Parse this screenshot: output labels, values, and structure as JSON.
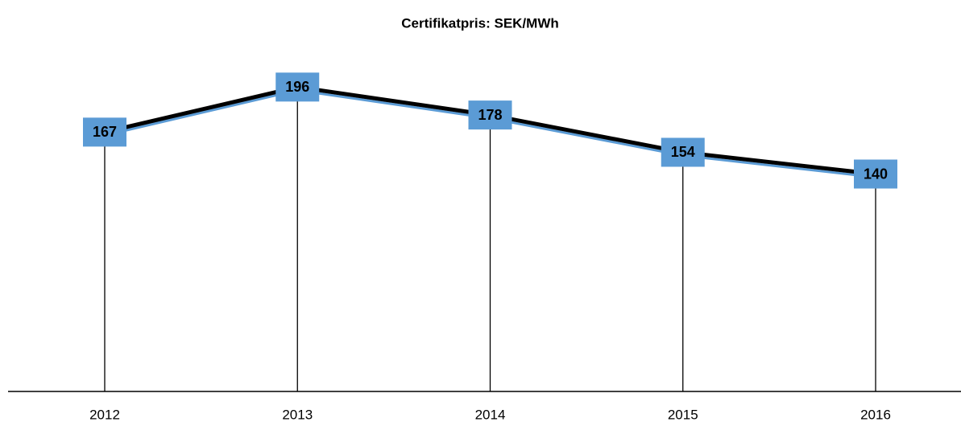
{
  "chart_data": {
    "type": "line",
    "title": "Certifikatpris: SEK/MWh",
    "categories": [
      "2012",
      "2013",
      "2014",
      "2015",
      "2016"
    ],
    "series": [
      {
        "name": "Certifikatpris",
        "color": "#000000",
        "label_color": "#5b9bd5",
        "values": [
          167,
          196,
          178,
          154,
          140
        ]
      }
    ],
    "ylim": [
      0,
      250
    ],
    "drop_lines": true,
    "data_labels": true
  }
}
